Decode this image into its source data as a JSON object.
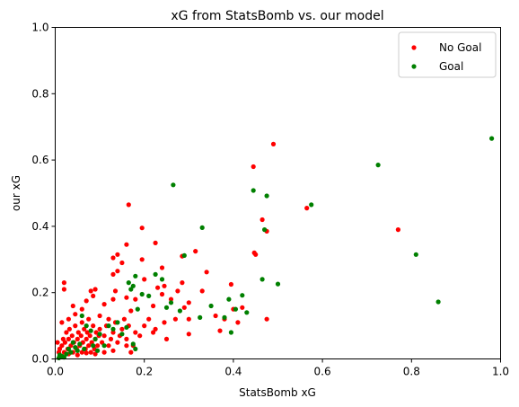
{
  "chart_data": {
    "type": "scatter",
    "title": "xG from StatsBomb vs. our model",
    "xlabel": "StatsBomb xG",
    "ylabel": "our xG",
    "xlim": [
      0,
      1
    ],
    "ylim": [
      0,
      1
    ],
    "xticks": [
      "0.0",
      "0.2",
      "0.4",
      "0.6",
      "0.8",
      "1.0"
    ],
    "yticks": [
      "0.0",
      "0.2",
      "0.4",
      "0.6",
      "0.8",
      "1.0"
    ],
    "grid": false,
    "legend_position": "top-right",
    "series": [
      {
        "name": "No Goal",
        "color": "#ff0000",
        "points": [
          [
            0.49,
            0.648
          ],
          [
            0.445,
            0.58
          ],
          [
            0.565,
            0.455
          ],
          [
            0.77,
            0.39
          ],
          [
            0.165,
            0.465
          ],
          [
            0.195,
            0.395
          ],
          [
            0.16,
            0.345
          ],
          [
            0.225,
            0.35
          ],
          [
            0.465,
            0.42
          ],
          [
            0.475,
            0.385
          ],
          [
            0.447,
            0.32
          ],
          [
            0.45,
            0.315
          ],
          [
            0.34,
            0.262
          ],
          [
            0.315,
            0.325
          ],
          [
            0.285,
            0.31
          ],
          [
            0.24,
            0.275
          ],
          [
            0.195,
            0.3
          ],
          [
            0.13,
            0.305
          ],
          [
            0.14,
            0.315
          ],
          [
            0.13,
            0.255
          ],
          [
            0.14,
            0.265
          ],
          [
            0.15,
            0.29
          ],
          [
            0.2,
            0.24
          ],
          [
            0.23,
            0.215
          ],
          [
            0.245,
            0.22
          ],
          [
            0.275,
            0.205
          ],
          [
            0.285,
            0.23
          ],
          [
            0.33,
            0.205
          ],
          [
            0.395,
            0.225
          ],
          [
            0.02,
            0.23
          ],
          [
            0.02,
            0.21
          ],
          [
            0.08,
            0.205
          ],
          [
            0.09,
            0.21
          ],
          [
            0.085,
            0.19
          ],
          [
            0.07,
            0.175
          ],
          [
            0.04,
            0.16
          ],
          [
            0.11,
            0.165
          ],
          [
            0.13,
            0.18
          ],
          [
            0.135,
            0.205
          ],
          [
            0.18,
            0.18
          ],
          [
            0.16,
            0.185
          ],
          [
            0.17,
            0.145
          ],
          [
            0.21,
            0.12
          ],
          [
            0.22,
            0.16
          ],
          [
            0.24,
            0.195
          ],
          [
            0.26,
            0.18
          ],
          [
            0.225,
            0.09
          ],
          [
            0.245,
            0.11
          ],
          [
            0.27,
            0.12
          ],
          [
            0.29,
            0.155
          ],
          [
            0.3,
            0.17
          ],
          [
            0.3,
            0.12
          ],
          [
            0.36,
            0.13
          ],
          [
            0.38,
            0.12
          ],
          [
            0.4,
            0.15
          ],
          [
            0.42,
            0.155
          ],
          [
            0.41,
            0.11
          ],
          [
            0.475,
            0.12
          ],
          [
            0.37,
            0.085
          ],
          [
            0.3,
            0.075
          ],
          [
            0.25,
            0.06
          ],
          [
            0.19,
            0.07
          ],
          [
            0.16,
            0.04
          ],
          [
            0.18,
            0.08
          ],
          [
            0.2,
            0.1
          ],
          [
            0.22,
            0.08
          ],
          [
            0.015,
            0.11
          ],
          [
            0.03,
            0.12
          ],
          [
            0.045,
            0.135
          ],
          [
            0.06,
            0.15
          ],
          [
            0.005,
            0.05
          ],
          [
            0.008,
            0.02
          ],
          [
            0.01,
            0.03
          ],
          [
            0.012,
            0.01
          ],
          [
            0.015,
            0.04
          ],
          [
            0.018,
            0.06
          ],
          [
            0.02,
            0.02
          ],
          [
            0.022,
            0.05
          ],
          [
            0.025,
            0.08
          ],
          [
            0.028,
            0.03
          ],
          [
            0.03,
            0.06
          ],
          [
            0.032,
            0.09
          ],
          [
            0.035,
            0.04
          ],
          [
            0.038,
            0.07
          ],
          [
            0.04,
            0.02
          ],
          [
            0.042,
            0.05
          ],
          [
            0.045,
            0.1
          ],
          [
            0.048,
            0.03
          ],
          [
            0.05,
            0.06
          ],
          [
            0.052,
            0.08
          ],
          [
            0.055,
            0.04
          ],
          [
            0.058,
            0.07
          ],
          [
            0.06,
            0.02
          ],
          [
            0.062,
            0.05
          ],
          [
            0.065,
            0.09
          ],
          [
            0.068,
            0.03
          ],
          [
            0.07,
            0.06
          ],
          [
            0.072,
            0.08
          ],
          [
            0.075,
            0.04
          ],
          [
            0.078,
            0.07
          ],
          [
            0.08,
            0.02
          ],
          [
            0.082,
            0.05
          ],
          [
            0.085,
            0.1
          ],
          [
            0.088,
            0.03
          ],
          [
            0.09,
            0.06
          ],
          [
            0.092,
            0.08
          ],
          [
            0.095,
            0.04
          ],
          [
            0.098,
            0.07
          ],
          [
            0.1,
            0.09
          ],
          [
            0.105,
            0.05
          ],
          [
            0.11,
            0.07
          ],
          [
            0.115,
            0.1
          ],
          [
            0.12,
            0.04
          ],
          [
            0.125,
            0.06
          ],
          [
            0.13,
            0.08
          ],
          [
            0.135,
            0.11
          ],
          [
            0.14,
            0.05
          ],
          [
            0.145,
            0.07
          ],
          [
            0.15,
            0.09
          ],
          [
            0.155,
            0.12
          ],
          [
            0.16,
            0.06
          ],
          [
            0.165,
            0.1
          ],
          [
            0.17,
            0.02
          ],
          [
            0.175,
            0.04
          ],
          [
            0.03,
            0.015
          ],
          [
            0.05,
            0.012
          ],
          [
            0.07,
            0.018
          ],
          [
            0.09,
            0.015
          ],
          [
            0.11,
            0.02
          ],
          [
            0.13,
            0.025
          ],
          [
            0.06,
            0.11
          ],
          [
            0.075,
            0.12
          ],
          [
            0.1,
            0.13
          ],
          [
            0.12,
            0.12
          ]
        ]
      },
      {
        "name": "Goal",
        "color": "#008000",
        "points": [
          [
            0.98,
            0.665
          ],
          [
            0.725,
            0.585
          ],
          [
            0.81,
            0.315
          ],
          [
            0.86,
            0.172
          ],
          [
            0.575,
            0.465
          ],
          [
            0.445,
            0.508
          ],
          [
            0.475,
            0.492
          ],
          [
            0.47,
            0.39
          ],
          [
            0.33,
            0.396
          ],
          [
            0.265,
            0.525
          ],
          [
            0.29,
            0.312
          ],
          [
            0.5,
            0.226
          ],
          [
            0.465,
            0.24
          ],
          [
            0.42,
            0.192
          ],
          [
            0.405,
            0.15
          ],
          [
            0.43,
            0.14
          ],
          [
            0.39,
            0.18
          ],
          [
            0.38,
            0.125
          ],
          [
            0.395,
            0.08
          ],
          [
            0.325,
            0.125
          ],
          [
            0.35,
            0.16
          ],
          [
            0.28,
            0.145
          ],
          [
            0.26,
            0.17
          ],
          [
            0.25,
            0.155
          ],
          [
            0.24,
            0.24
          ],
          [
            0.225,
            0.255
          ],
          [
            0.21,
            0.19
          ],
          [
            0.195,
            0.195
          ],
          [
            0.18,
            0.25
          ],
          [
            0.175,
            0.22
          ],
          [
            0.17,
            0.21
          ],
          [
            0.165,
            0.23
          ],
          [
            0.185,
            0.15
          ],
          [
            0.12,
            0.1
          ],
          [
            0.13,
            0.09
          ],
          [
            0.14,
            0.11
          ],
          [
            0.15,
            0.075
          ],
          [
            0.16,
            0.095
          ],
          [
            0.175,
            0.045
          ],
          [
            0.18,
            0.03
          ],
          [
            0.06,
            0.13
          ],
          [
            0.07,
            0.1
          ],
          [
            0.08,
            0.085
          ],
          [
            0.09,
            0.06
          ],
          [
            0.1,
            0.075
          ],
          [
            0.11,
            0.04
          ],
          [
            0.045,
            0.035
          ],
          [
            0.055,
            0.045
          ],
          [
            0.065,
            0.03
          ],
          [
            0.085,
            0.04
          ],
          [
            0.095,
            0.025
          ],
          [
            0.035,
            0.02
          ],
          [
            0.025,
            0.015
          ],
          [
            0.015,
            0.008
          ],
          [
            0.01,
            0.012
          ],
          [
            0.02,
            0.005
          ],
          [
            0.04,
            0.05
          ],
          [
            0.05,
            0.025
          ],
          [
            0.03,
            0.03
          ],
          [
            0.008,
            0.003
          ]
        ]
      }
    ]
  }
}
